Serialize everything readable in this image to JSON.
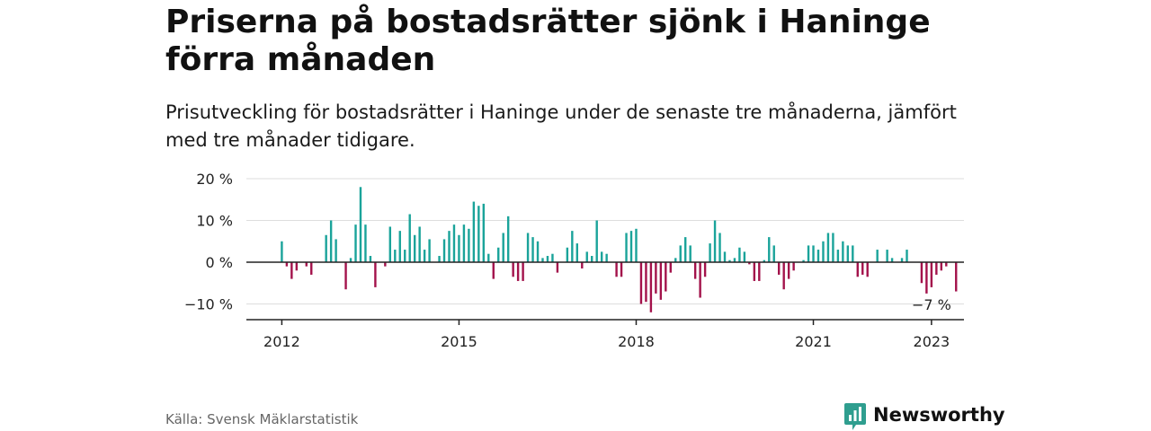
{
  "title": "Priserna på bostadsrätter sjönk i Haninge förra månaden",
  "subtitle": "Prisutveckling för bostadsrätter i Haninge under de senaste tre månaderna, jämfört med tre månader tidigare.",
  "source": "Källa: Svensk Mäklarstatistik",
  "brand": {
    "name": "Newsworthy",
    "icon": "newsworthy-logo-icon",
    "color": "#2f9e8f"
  },
  "colors": {
    "positive": "#1aa39a",
    "negative": "#a3124b",
    "grid": "#dddddd",
    "axis": "#222222"
  },
  "chart_data": {
    "type": "bar",
    "title": "Priserna på bostadsrätter sjönk i Haninge förra månaden",
    "ylabel": "",
    "xlabel": "",
    "ylim": [
      -14,
      20
    ],
    "yticks": [
      20,
      10,
      0,
      -10
    ],
    "ytick_labels": [
      "20 %",
      "10 %",
      "0 %",
      "−10 %"
    ],
    "xticks": [
      2012,
      2015,
      2018,
      2021,
      2023
    ],
    "xlim": [
      2011.4,
      2023.55
    ],
    "grid": true,
    "x_start": "2012-01",
    "x_step": "month",
    "values": [
      5,
      -1,
      -4,
      -2,
      0,
      -1,
      -3,
      0,
      0,
      6.5,
      10,
      5.5,
      0,
      -6.5,
      1,
      9,
      18,
      9,
      1.5,
      -6,
      0,
      -1,
      8.5,
      3,
      7.5,
      3,
      11.5,
      6.5,
      8.5,
      3,
      5.5,
      0,
      1.5,
      5.5,
      7.5,
      9,
      6.5,
      9,
      8,
      14.5,
      13.5,
      14,
      2,
      -4,
      3.5,
      7,
      11,
      -3.5,
      -4.5,
      -4.5,
      7,
      6,
      5,
      1,
      1.5,
      2,
      -2.5,
      0,
      3.5,
      7.5,
      4.5,
      -1.5,
      2.5,
      1.5,
      10,
      2.5,
      2,
      0,
      -3.5,
      -3.5,
      7,
      7.5,
      8,
      -10,
      -9.5,
      -12,
      -7.5,
      -9,
      -7,
      -2.5,
      1,
      4,
      6,
      4,
      -4,
      -8.5,
      -3.5,
      4.5,
      10,
      7,
      2.5,
      0.5,
      1,
      3.5,
      2.5,
      -0.5,
      -4.5,
      -4.5,
      0.5,
      6,
      4,
      -3,
      -6.5,
      -4,
      -2,
      0,
      0.5,
      4,
      4,
      3,
      5,
      7,
      7,
      3,
      5,
      4,
      4,
      -3.5,
      -3,
      -3.5,
      0,
      3,
      0,
      3,
      1,
      0,
      1,
      3,
      0,
      0,
      -5,
      -7.5,
      -6,
      -3,
      -2,
      -1,
      0,
      -7
    ],
    "annotation": {
      "text": "−7 %",
      "x": "2023-01",
      "y": -7
    }
  }
}
